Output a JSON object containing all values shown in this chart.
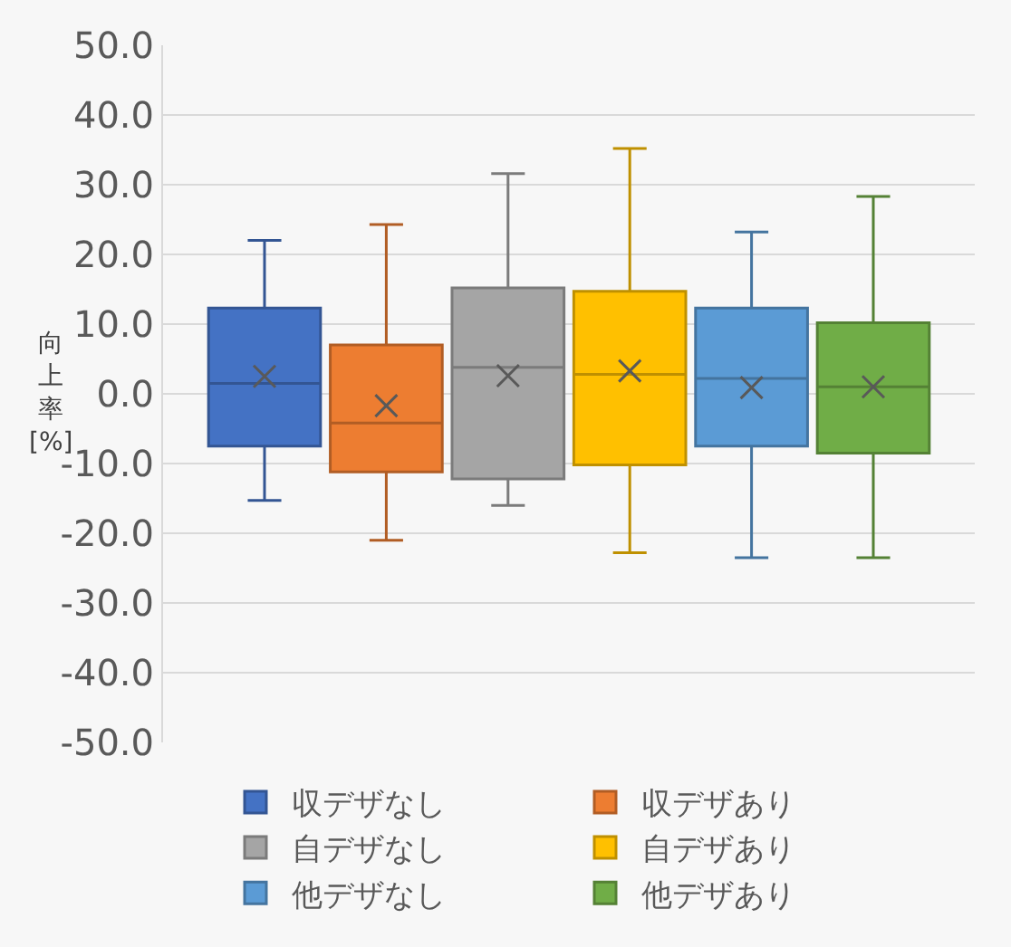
{
  "chart_data": {
    "type": "box",
    "ylabel": "向上率[%]",
    "categories": [
      null
    ],
    "series": [
      {
        "name": "収デザなし",
        "color": "#4472c4",
        "boxes": [
          {
            "low": -15.3,
            "q1": -7.5,
            "median": 1.5,
            "q3": 12.3,
            "high": 22.0,
            "mean": 2.5
          }
        ]
      },
      {
        "name": "収デザあり",
        "color": "#ed7d31",
        "boxes": [
          {
            "low": -21.0,
            "q1": -11.2,
            "median": -4.2,
            "q3": 7.0,
            "high": 24.3,
            "mean": -1.7
          }
        ]
      },
      {
        "name": "自デザなし",
        "color": "#a5a5a5",
        "boxes": [
          {
            "low": -16.0,
            "q1": -12.2,
            "median": 3.8,
            "q3": 15.2,
            "high": 31.6,
            "mean": 2.6
          }
        ]
      },
      {
        "name": "自デザあり",
        "color": "#ffc000",
        "boxes": [
          {
            "low": -22.8,
            "q1": -10.2,
            "median": 2.8,
            "q3": 14.7,
            "high": 35.2,
            "mean": 3.3
          }
        ]
      },
      {
        "name": "他デザなし",
        "color": "#5b9bd5",
        "boxes": [
          {
            "low": -23.5,
            "q1": -7.5,
            "median": 2.2,
            "q3": 12.3,
            "high": 23.2,
            "mean": 0.9
          }
        ]
      },
      {
        "name": "他デザあり",
        "color": "#70ad47",
        "boxes": [
          {
            "low": -23.5,
            "q1": -8.5,
            "median": 1.0,
            "q3": 10.2,
            "high": 28.3,
            "mean": 1.0
          }
        ]
      }
    ],
    "ylim": [
      -50,
      50
    ],
    "yticks": [
      {
        "value": -50,
        "label": "-50.0"
      },
      {
        "value": -40,
        "label": "-40.0"
      },
      {
        "value": -30,
        "label": "-30.0"
      },
      {
        "value": -20,
        "label": "-20.0"
      },
      {
        "value": -10,
        "label": "-10.0"
      },
      {
        "value": 0,
        "label": "0.0"
      },
      {
        "value": 10,
        "label": "10.0"
      },
      {
        "value": 20,
        "label": "20.0"
      },
      {
        "value": 30,
        "label": "30.0"
      },
      {
        "value": 40,
        "label": "40.0"
      },
      {
        "value": 50,
        "label": "50.0"
      }
    ],
    "grid": "y",
    "legend": "bottom"
  }
}
